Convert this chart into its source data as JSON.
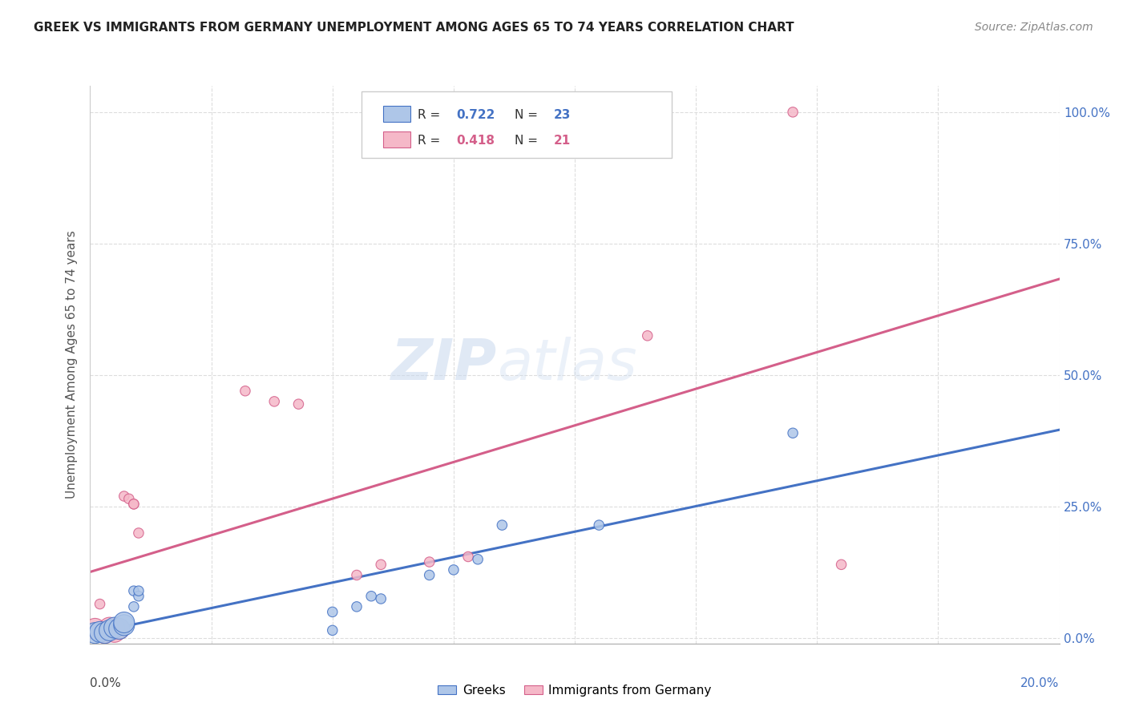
{
  "title": "GREEK VS IMMIGRANTS FROM GERMANY UNEMPLOYMENT AMONG AGES 65 TO 74 YEARS CORRELATION CHART",
  "source": "Source: ZipAtlas.com",
  "ylabel": "Unemployment Among Ages 65 to 74 years",
  "watermark_zip": "ZIP",
  "watermark_atlas": "atlas",
  "legend1_label": "Greeks",
  "legend2_label": "Immigrants from Germany",
  "R_blue": 0.722,
  "N_blue": 23,
  "R_pink": 0.418,
  "N_pink": 21,
  "blue_color": "#aec6e8",
  "blue_edge_color": "#4472c4",
  "pink_color": "#f5b8c8",
  "pink_edge_color": "#d45f8a",
  "blue_line_color": "#4472c4",
  "pink_line_color": "#d45f8a",
  "blue_scatter": [
    [
      0.001,
      0.01
    ],
    [
      0.002,
      0.012
    ],
    [
      0.003,
      0.01
    ],
    [
      0.004,
      0.015
    ],
    [
      0.005,
      0.02
    ],
    [
      0.006,
      0.018
    ],
    [
      0.007,
      0.025
    ],
    [
      0.007,
      0.03
    ],
    [
      0.009,
      0.06
    ],
    [
      0.009,
      0.09
    ],
    [
      0.01,
      0.08
    ],
    [
      0.01,
      0.09
    ],
    [
      0.05,
      0.05
    ],
    [
      0.05,
      0.015
    ],
    [
      0.055,
      0.06
    ],
    [
      0.058,
      0.08
    ],
    [
      0.06,
      0.075
    ],
    [
      0.07,
      0.12
    ],
    [
      0.075,
      0.13
    ],
    [
      0.08,
      0.15
    ],
    [
      0.085,
      0.215
    ],
    [
      0.105,
      0.215
    ],
    [
      0.145,
      0.39
    ]
  ],
  "pink_scatter": [
    [
      0.001,
      0.018
    ],
    [
      0.002,
      0.065
    ],
    [
      0.003,
      0.01
    ],
    [
      0.004,
      0.02
    ],
    [
      0.005,
      0.012
    ],
    [
      0.006,
      0.018
    ],
    [
      0.007,
      0.27
    ],
    [
      0.008,
      0.265
    ],
    [
      0.009,
      0.255
    ],
    [
      0.009,
      0.255
    ],
    [
      0.01,
      0.2
    ],
    [
      0.032,
      0.47
    ],
    [
      0.038,
      0.45
    ],
    [
      0.043,
      0.445
    ],
    [
      0.055,
      0.12
    ],
    [
      0.06,
      0.14
    ],
    [
      0.07,
      0.145
    ],
    [
      0.078,
      0.155
    ],
    [
      0.115,
      0.575
    ],
    [
      0.145,
      1.0
    ],
    [
      0.155,
      0.14
    ]
  ],
  "xlim": [
    0.0,
    0.2
  ],
  "ylim": [
    -0.01,
    1.05
  ],
  "yticks": [
    0.0,
    0.25,
    0.5,
    0.75,
    1.0
  ],
  "ytick_labels": [
    "0.0%",
    "25.0%",
    "50.0%",
    "75.0%",
    "100.0%"
  ],
  "right_axis_color": "#4472c4",
  "grid_color": "#dddddd",
  "title_color": "#222222",
  "source_color": "#888888",
  "ylabel_color": "#555555"
}
